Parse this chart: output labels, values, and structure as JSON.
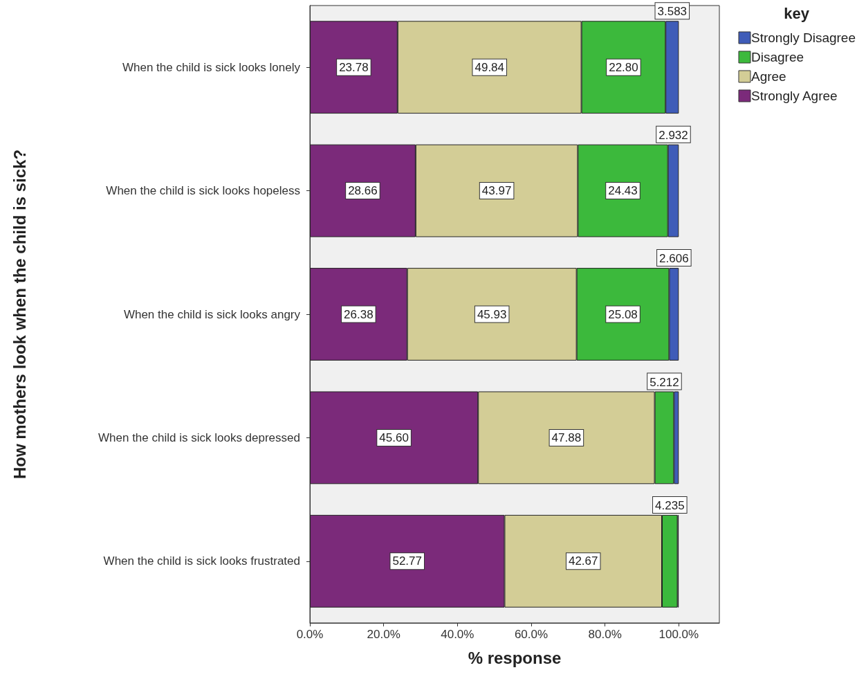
{
  "chart_data": {
    "type": "bar",
    "orientation": "horizontal",
    "stacked": true,
    "xlabel": "% response",
    "ylabel": "How mothers look when the child is sick?",
    "legend_title": "key",
    "legend": "top right",
    "grid": false,
    "categories": [
      "When the child is sick looks lonely",
      "When the child is sick looks hopeless",
      "When the child is sick looks angry",
      "When the child is sick looks depressed",
      "When the child is sick looks frustrated"
    ],
    "xlim": [
      0,
      111
    ],
    "xticks": [
      {
        "value": 0,
        "label": "0.0%"
      },
      {
        "value": 20,
        "label": "20.0%"
      },
      {
        "value": 40,
        "label": "40.0%"
      },
      {
        "value": 60,
        "label": "60.0%"
      },
      {
        "value": 80,
        "label": "80.0%"
      },
      {
        "value": 100,
        "label": "100.0%"
      }
    ],
    "series": [
      {
        "name": "Strongly Agree",
        "color": "#7b2a7a",
        "values": [
          23.78,
          28.66,
          26.38,
          45.6,
          52.77
        ],
        "value_labels": [
          "23.78",
          "28.66",
          "26.38",
          "45.60",
          "52.77"
        ]
      },
      {
        "name": "Agree",
        "color": "#d3cd96",
        "values": [
          49.84,
          43.97,
          45.93,
          47.88,
          42.67
        ],
        "value_labels": [
          "49.84",
          "43.97",
          "45.93",
          "47.88",
          "42.67"
        ]
      },
      {
        "name": "Disagree",
        "color": "#3cb93c",
        "values": [
          22.8,
          24.43,
          25.08,
          5.212,
          4.235
        ],
        "value_labels": [
          "22.80",
          "24.43",
          "25.08",
          "5.212",
          "4.235"
        ]
      },
      {
        "name": "Strongly Disagree",
        "color": "#3f5cb8",
        "values": [
          3.583,
          2.932,
          2.606,
          1.3,
          0.3
        ],
        "value_labels": [
          "3.583",
          "2.932",
          "2.606",
          null,
          null
        ]
      }
    ]
  }
}
